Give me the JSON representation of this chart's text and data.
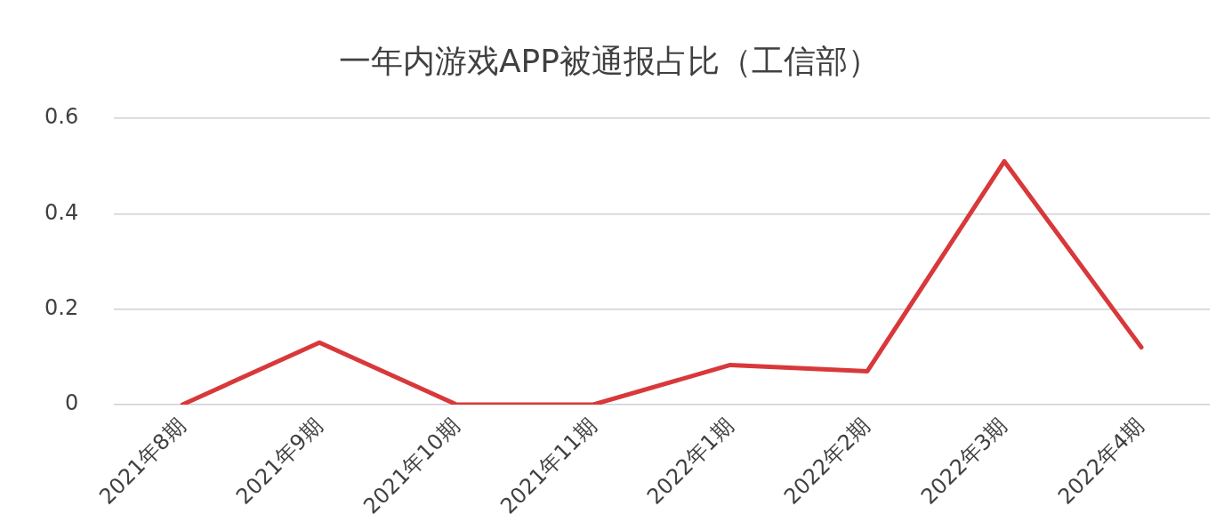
{
  "chart_data": {
    "type": "line",
    "title": "一年内游戏APP被通报占比（工信部）",
    "categories": [
      "2021年8期",
      "2021年9期",
      "2021年10期",
      "2021年11期",
      "2022年1期",
      "2022年2期",
      "2022年3期",
      "2022年4期"
    ],
    "series": [
      {
        "color": "#d9383a",
        "values": [
          0,
          0.13,
          0,
          0,
          0.083,
          0.07,
          0.51,
          0.12
        ]
      }
    ],
    "ylim": [
      0,
      0.6
    ],
    "yticks": [
      0,
      0.2,
      0.4,
      0.6
    ],
    "grid": "y",
    "legend": false,
    "marker": "none",
    "line_style": "solid"
  }
}
